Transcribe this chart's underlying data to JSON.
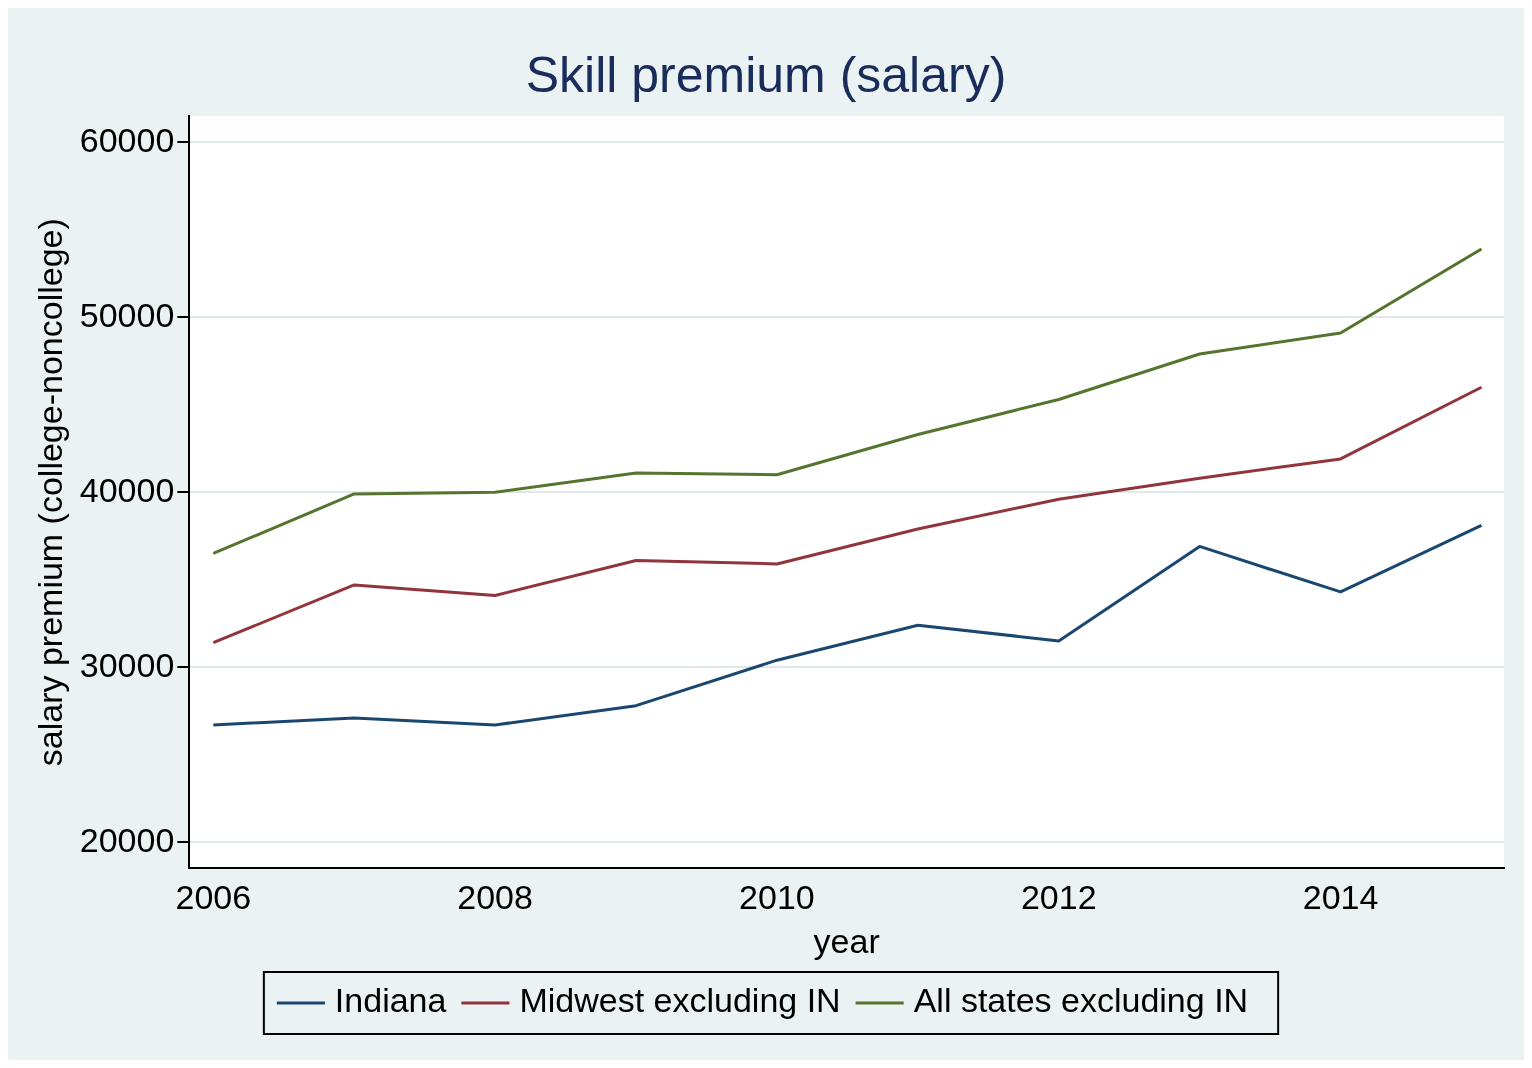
{
  "chart_data": {
    "type": "line",
    "title": "Skill premium (salary)",
    "xlabel": "year",
    "ylabel": "salary premium (college-noncollege)",
    "x": [
      2006,
      2007,
      2008,
      2009,
      2010,
      2011,
      2012,
      2013,
      2014,
      2015
    ],
    "series": [
      {
        "name": "Indiana",
        "color": "#1a476f",
        "values": [
          26700,
          27100,
          26700,
          27800,
          30400,
          32400,
          31500,
          36900,
          34300,
          38100
        ]
      },
      {
        "name": "Midwest excluding IN",
        "color": "#90353b",
        "values": [
          31400,
          34700,
          34100,
          36100,
          35900,
          37900,
          39600,
          40800,
          41900,
          46000
        ]
      },
      {
        "name": "All states excluding IN",
        "color": "#55752f",
        "values": [
          36500,
          39900,
          40000,
          41100,
          41000,
          43300,
          45300,
          47900,
          49100,
          53900
        ]
      }
    ],
    "xlim": [
      2005.83,
      2015.16
    ],
    "xticks": [
      2006,
      2008,
      2010,
      2012,
      2014
    ],
    "ylim": [
      18500,
      61500
    ],
    "yticks": [
      20000,
      30000,
      40000,
      50000,
      60000
    ],
    "grid": "y",
    "legend": "bottom",
    "marker": "none",
    "line_style": "solid"
  }
}
